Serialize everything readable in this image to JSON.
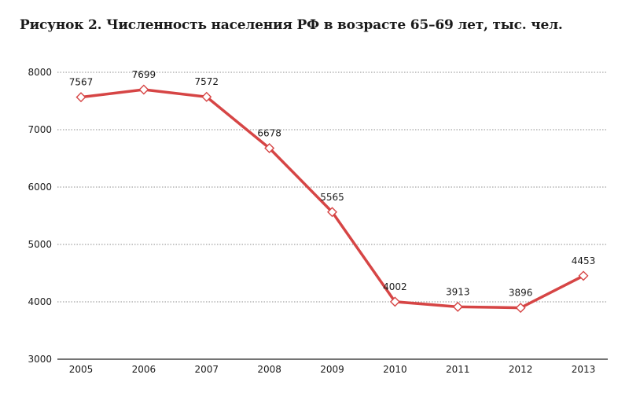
{
  "page": {
    "title": "Рисунок 2. Численность населения РФ в возрасте 65–69 лет, тыс. чел."
  },
  "chart_data": {
    "type": "line",
    "title": "Рисунок 2. Численность населения РФ в возрасте 65–69 лет, тыс. чел.",
    "xlabel": "",
    "ylabel": "",
    "x": [
      "2005",
      "2006",
      "2007",
      "2008",
      "2009",
      "2010",
      "2011",
      "2012",
      "2013"
    ],
    "series": [
      {
        "values": [
          7567,
          7699,
          7572,
          6678,
          5565,
          4002,
          3913,
          3896,
          4453
        ],
        "color": "#d64545",
        "marker": "diamond-open"
      }
    ],
    "ylim": [
      3000,
      8000
    ],
    "yticks": [
      3000,
      4000,
      5000,
      6000,
      7000,
      8000
    ],
    "grid": "horizontal-dotted",
    "legend": "none",
    "data_labels": true
  }
}
